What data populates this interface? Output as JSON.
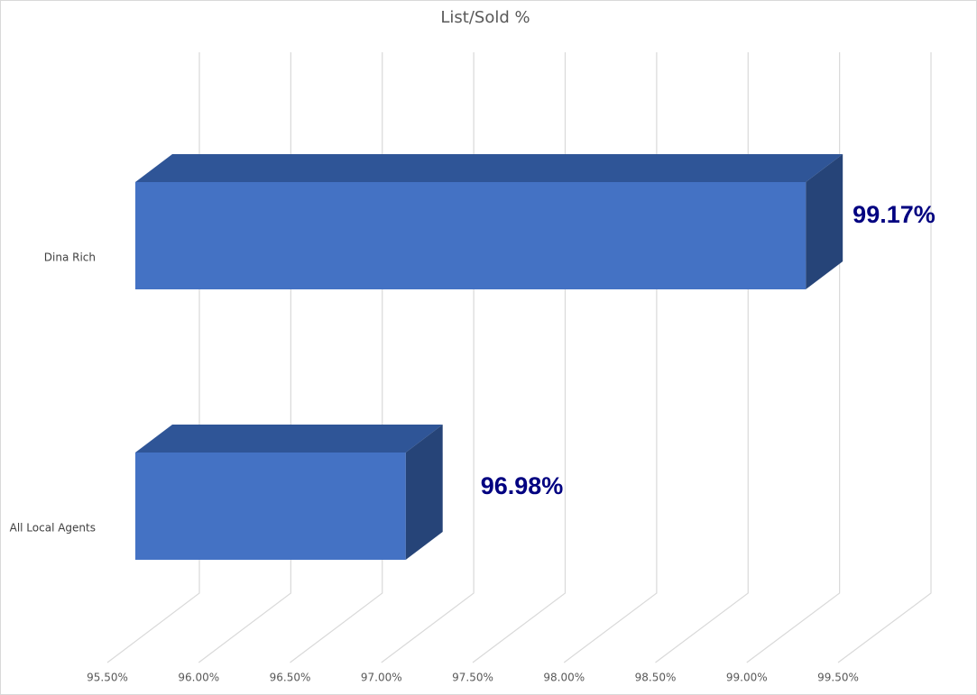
{
  "chart_data": {
    "type": "bar3d",
    "orientation": "horizontal",
    "title": "List/Sold %",
    "categories": [
      "Dina Rich",
      "All Local Agents"
    ],
    "values": [
      99.17,
      96.98
    ],
    "value_labels": [
      "99.17%",
      "96.98%"
    ],
    "color": "#4472c4",
    "value_label_color": "#000080",
    "xlim": [
      95.5,
      99.5
    ],
    "xticks": [
      {
        "value": 95.5,
        "label": "95.50%"
      },
      {
        "value": 96,
        "label": "96.00%"
      },
      {
        "value": 96.5,
        "label": "96.50%"
      },
      {
        "value": 97,
        "label": "97.00%"
      },
      {
        "value": 97.5,
        "label": "97.50%"
      },
      {
        "value": 98,
        "label": "98.00%"
      },
      {
        "value": 98.5,
        "label": "98.50%"
      },
      {
        "value": 99,
        "label": "99.00%"
      },
      {
        "value": 99.5,
        "label": "99.50%"
      }
    ],
    "grid": true
  }
}
